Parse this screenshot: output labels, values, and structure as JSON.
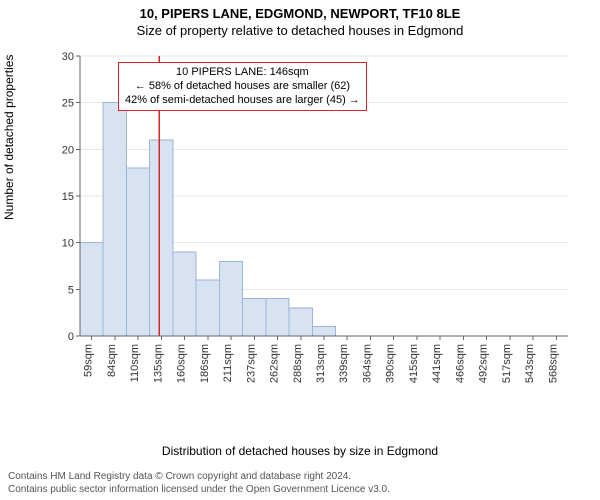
{
  "title": "10, PIPERS LANE, EDGMOND, NEWPORT, TF10 8LE",
  "subtitle": "Size of property relative to detached houses in Edgmond",
  "ylabel": "Number of detached properties",
  "xlabel": "Distribution of detached houses by size in Edgmond",
  "footer_line1": "Contains HM Land Registry data © Crown copyright and database right 2024.",
  "footer_line2": "Contains public sector information licensed under the Open Government Licence v3.0.",
  "chart": {
    "type": "histogram",
    "ylim": [
      0,
      30
    ],
    "ytick_step": 5,
    "background_color": "#ffffff",
    "grid_color": "#e6e6e6",
    "axis_color": "#666666",
    "bar_fill": "#d8e3f2",
    "bar_stroke": "#9db5d6",
    "marker_color": "#d62728",
    "box_border_color": "#d62728",
    "tick_fontsize": 11,
    "label_fontsize": 12,
    "bar_width": 1.0,
    "x_categories": [
      "59sqm",
      "84sqm",
      "110sqm",
      "135sqm",
      "160sqm",
      "186sqm",
      "211sqm",
      "237sqm",
      "262sqm",
      "288sqm",
      "313sqm",
      "339sqm",
      "364sqm",
      "390sqm",
      "415sqm",
      "441sqm",
      "466sqm",
      "492sqm",
      "517sqm",
      "543sqm",
      "568sqm"
    ],
    "values": [
      10,
      25,
      18,
      21,
      9,
      6,
      8,
      4,
      4,
      3,
      1,
      0,
      0,
      0,
      0,
      0,
      0,
      0,
      0,
      0,
      0
    ],
    "marker_x_index": 3.4
  },
  "annotation": {
    "line1": "10 PIPERS LANE: 146sqm",
    "line2": "← 58% of detached houses are smaller (62)",
    "line3": "42% of semi-detached houses are larger (45) →"
  }
}
